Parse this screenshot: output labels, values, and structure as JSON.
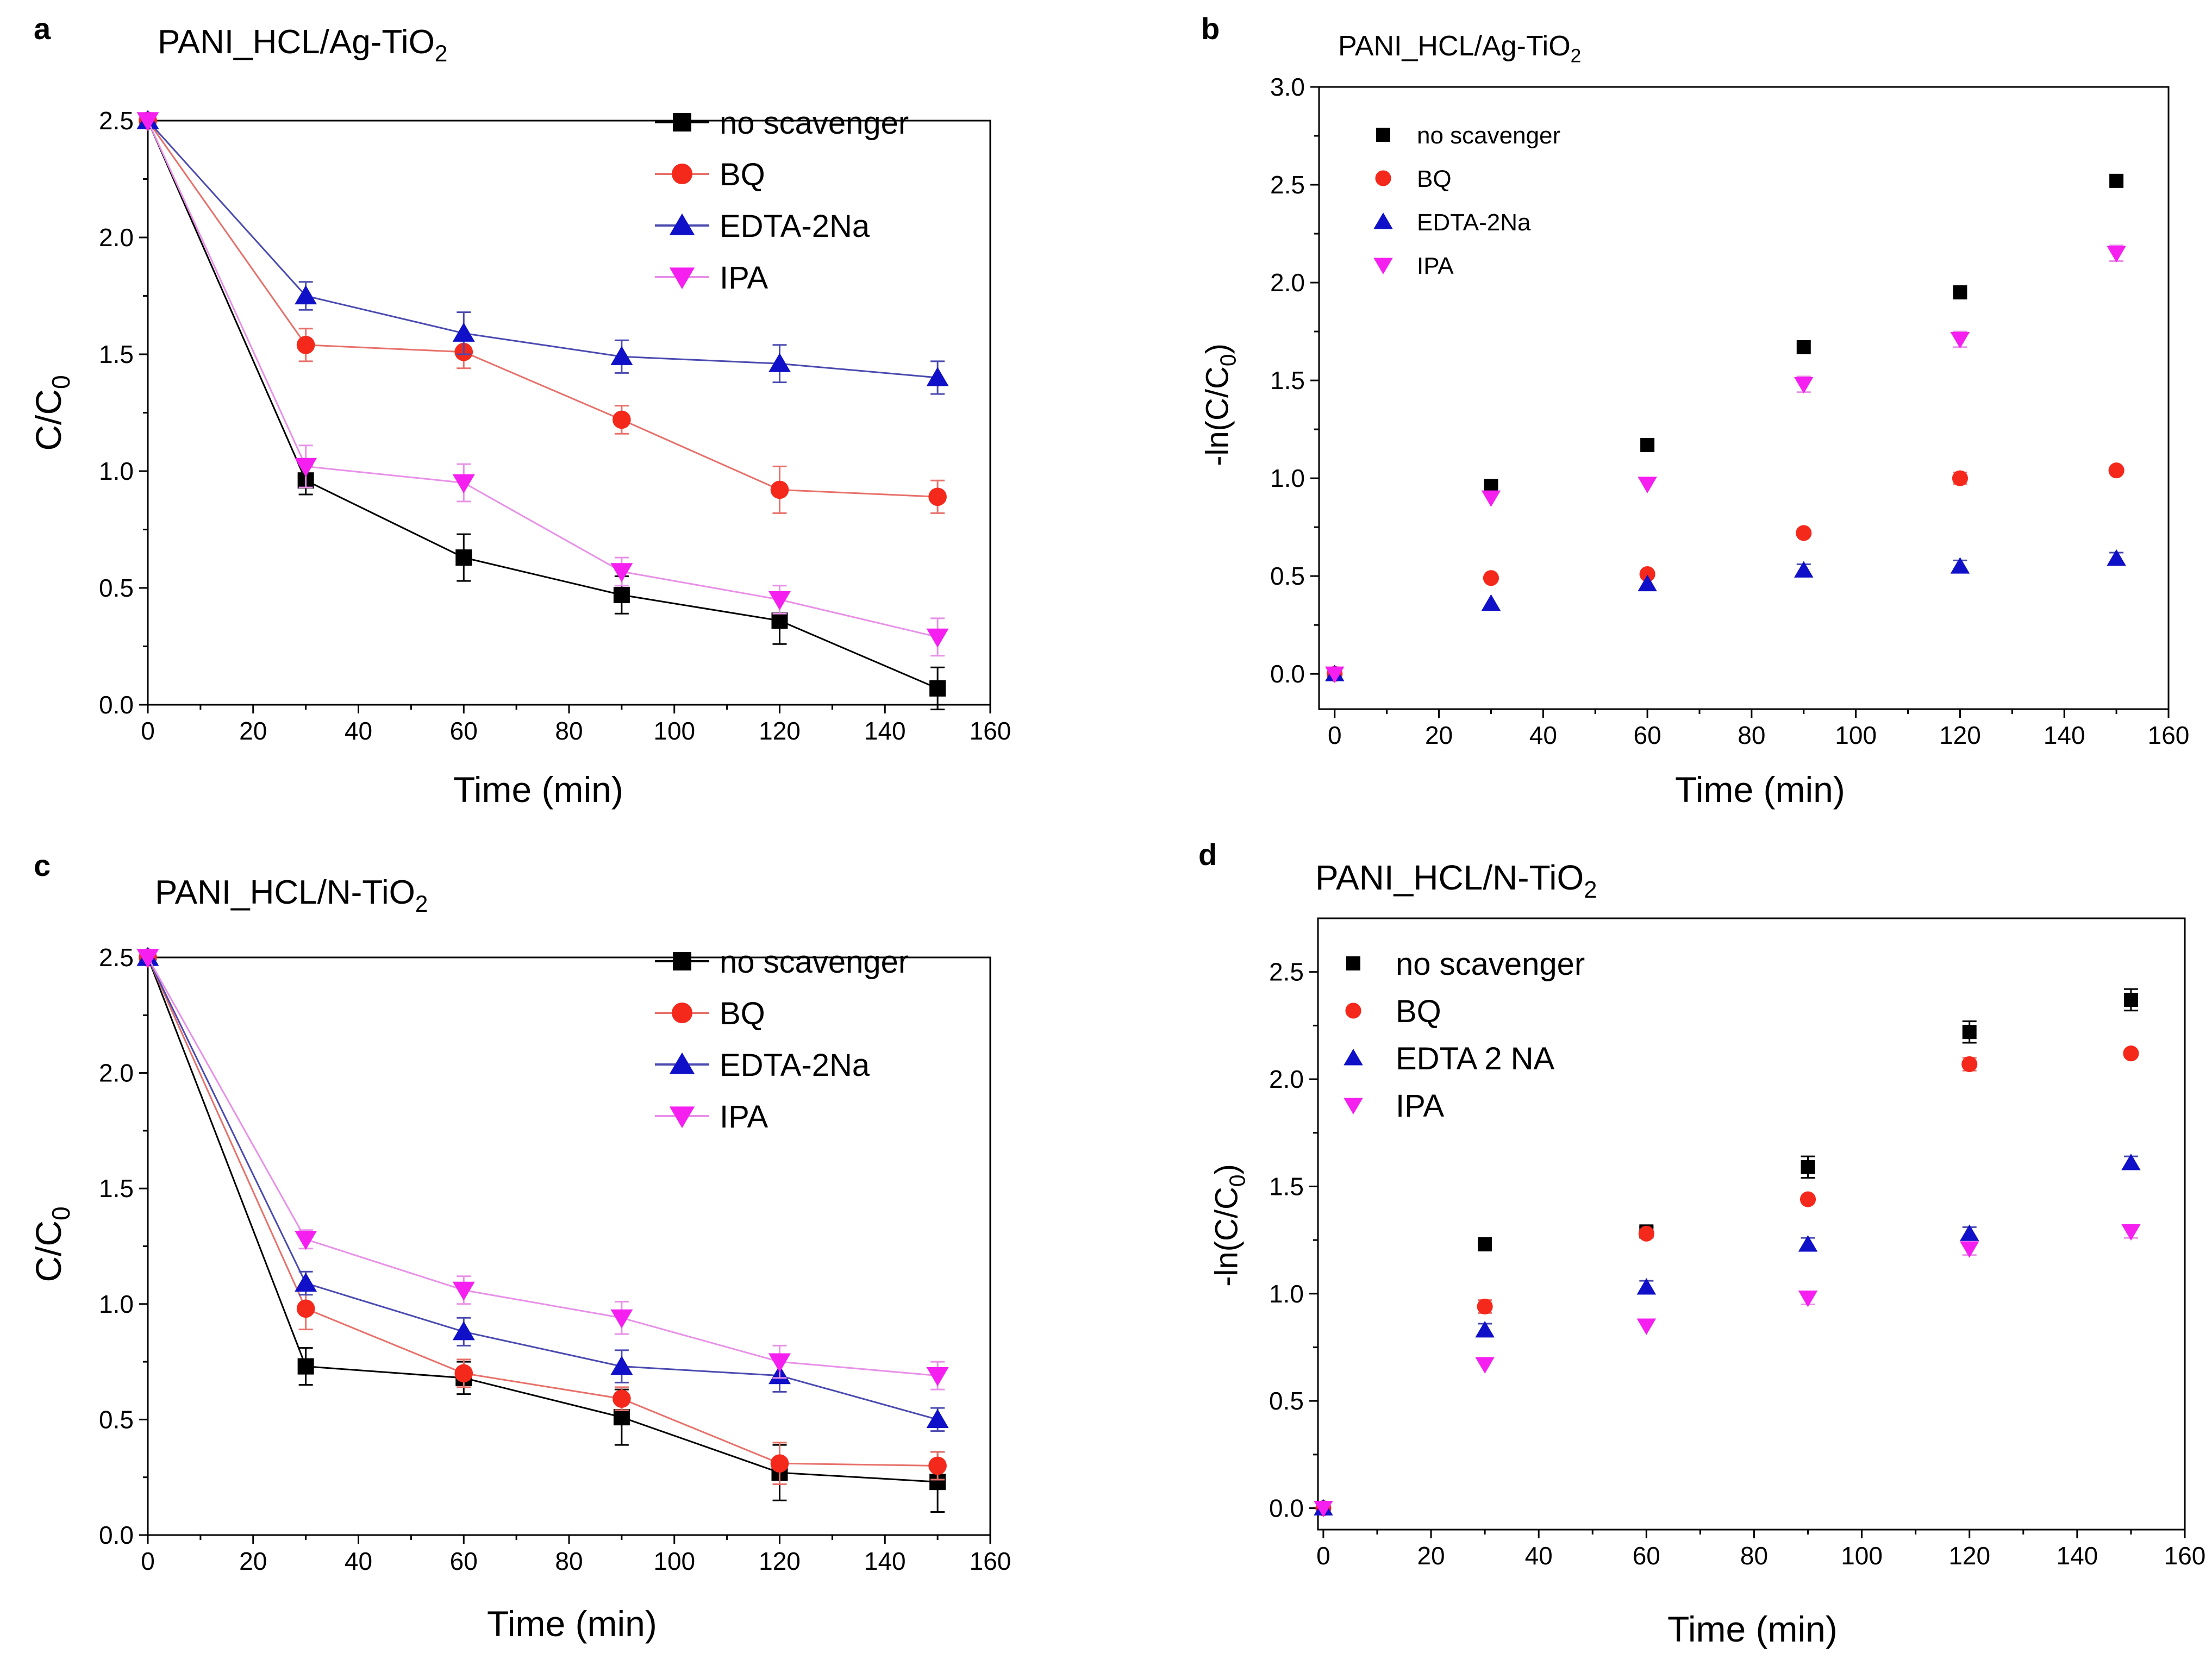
{
  "colors": {
    "no_scavenger": "#000000",
    "BQ": "#f5281c",
    "EDTA": "#1010c8",
    "IPA": "#f520f0",
    "line_BQ": "#e8706a",
    "line_EDTA": "#4a4ab0",
    "line_IPA": "#e890e8"
  },
  "chart_data": [
    {
      "panel_label": "a",
      "title_main": "PANI_HCL/Ag-TiO",
      "title_sub": "2",
      "type": "line",
      "xlabel": "Time (min)",
      "ylabel_main": "C/C",
      "ylabel_sub": "0",
      "xlim": [
        0,
        160
      ],
      "ylim": [
        0,
        2.5
      ],
      "xticks": [
        "0",
        "20",
        "40",
        "60",
        "80",
        "100",
        "120",
        "140",
        "160"
      ],
      "yticks": [
        "0.0",
        "0.5",
        "1.0",
        "1.5",
        "2.0",
        "2.5"
      ],
      "x": [
        0,
        30,
        60,
        90,
        120,
        150
      ],
      "legend_position": "top-right",
      "series": [
        {
          "name": "no scavenger",
          "values": [
            2.5,
            0.96,
            0.63,
            0.47,
            0.36,
            0.07
          ],
          "errors": [
            0,
            0.06,
            0.1,
            0.08,
            0.1,
            0.09
          ]
        },
        {
          "name": "BQ",
          "values": [
            2.5,
            1.54,
            1.51,
            1.22,
            0.92,
            0.89
          ],
          "errors": [
            0,
            0.07,
            0.07,
            0.06,
            0.1,
            0.07
          ]
        },
        {
          "name": "EDTA-2Na",
          "values": [
            2.5,
            1.75,
            1.59,
            1.49,
            1.46,
            1.4
          ],
          "errors": [
            0,
            0.06,
            0.09,
            0.07,
            0.08,
            0.07
          ]
        },
        {
          "name": "IPA",
          "values": [
            2.5,
            1.02,
            0.95,
            0.57,
            0.45,
            0.29
          ],
          "errors": [
            0,
            0.09,
            0.08,
            0.06,
            0.06,
            0.08
          ]
        }
      ]
    },
    {
      "panel_label": "b",
      "title_main": "PANI_HCL/Ag-TiO",
      "title_sub": "2",
      "type": "scatter",
      "xlabel": "Time (min)",
      "ylabel_main": "-ln(C/C",
      "ylabel_sub": "0",
      "ylabel_end": ")",
      "xlim": [
        -3,
        160
      ],
      "ylim": [
        -0.18,
        3.0
      ],
      "xticks": [
        "0",
        "20",
        "40",
        "60",
        "80",
        "100",
        "120",
        "140",
        "160"
      ],
      "yticks": [
        "0.0",
        "0.5",
        "1.0",
        "1.5",
        "2.0",
        "2.5",
        "3.0"
      ],
      "x": [
        0,
        30,
        60,
        90,
        120,
        150
      ],
      "legend_position": "top-left",
      "series": [
        {
          "name": "no scavenger",
          "values": [
            0,
            0.96,
            1.17,
            1.67,
            1.95,
            2.52
          ],
          "errors": [
            0,
            0,
            0,
            0,
            0,
            0
          ]
        },
        {
          "name": "BQ",
          "values": [
            0,
            0.49,
            0.51,
            0.72,
            1.0,
            1.04
          ],
          "errors": [
            0,
            0,
            0,
            0,
            0.03,
            0
          ]
        },
        {
          "name": "EDTA-2Na",
          "values": [
            0,
            0.36,
            0.46,
            0.53,
            0.55,
            0.59
          ],
          "errors": [
            0,
            0,
            0,
            0.03,
            0.03,
            0.03
          ]
        },
        {
          "name": "IPA",
          "values": [
            0,
            0.9,
            0.97,
            1.48,
            1.71,
            2.15
          ],
          "errors": [
            0,
            0,
            0,
            0.04,
            0.04,
            0.04
          ]
        }
      ]
    },
    {
      "panel_label": "c",
      "title_main": "PANI_HCL/N-TiO",
      "title_sub": "2",
      "type": "line",
      "xlabel": "Time (min)",
      "ylabel_main": "C/C",
      "ylabel_sub": "0",
      "xlim": [
        0,
        160
      ],
      "ylim": [
        0,
        2.5
      ],
      "xticks": [
        "0",
        "20",
        "40",
        "60",
        "80",
        "100",
        "120",
        "140",
        "160"
      ],
      "yticks": [
        "0.0",
        "0.5",
        "1.0",
        "1.5",
        "2.0",
        "2.5"
      ],
      "x": [
        0,
        30,
        60,
        90,
        120,
        150
      ],
      "legend_position": "top-right",
      "series": [
        {
          "name": "no scavenger",
          "values": [
            2.5,
            0.73,
            0.68,
            0.51,
            0.27,
            0.23
          ],
          "errors": [
            0,
            0.08,
            0.07,
            0.12,
            0.12,
            0.13
          ]
        },
        {
          "name": "BQ",
          "values": [
            2.5,
            0.98,
            0.7,
            0.59,
            0.31,
            0.3
          ],
          "errors": [
            0,
            0.09,
            0.06,
            0.05,
            0.09,
            0.06
          ]
        },
        {
          "name": "EDTA-2Na",
          "values": [
            2.5,
            1.09,
            0.88,
            0.73,
            0.69,
            0.5
          ],
          "errors": [
            0,
            0.05,
            0.06,
            0.07,
            0.07,
            0.05
          ]
        },
        {
          "name": "IPA",
          "values": [
            2.5,
            1.28,
            1.06,
            0.94,
            0.75,
            0.69
          ],
          "errors": [
            0,
            0.04,
            0.06,
            0.07,
            0.07,
            0.06
          ]
        }
      ]
    },
    {
      "panel_label": "d",
      "title_main": "PANI_HCL/N-TiO",
      "title_sub": "2",
      "type": "scatter",
      "xlabel": "Time (min)",
      "ylabel_main": "-ln(C/C",
      "ylabel_sub": "0",
      "ylabel_end": ")",
      "xlim": [
        -1,
        160
      ],
      "ylim": [
        -0.1,
        2.75
      ],
      "xticks": [
        "0",
        "20",
        "40",
        "60",
        "80",
        "100",
        "120",
        "140",
        "160"
      ],
      "yticks": [
        "0.0",
        "0.5",
        "1.0",
        "1.5",
        "2.0",
        "2.5"
      ],
      "x": [
        0,
        30,
        60,
        90,
        120,
        150
      ],
      "legend_position": "top-left",
      "series": [
        {
          "name": "no scavenger",
          "values": [
            0,
            1.23,
            1.29,
            1.59,
            2.22,
            2.37
          ],
          "errors": [
            0,
            0,
            0.02,
            0.05,
            0.05,
            0.05
          ]
        },
        {
          "name": "BQ",
          "values": [
            0,
            0.94,
            1.28,
            1.44,
            2.07,
            2.12
          ],
          "errors": [
            0,
            0.03,
            0,
            0,
            0.03,
            0
          ]
        },
        {
          "name": "EDTA 2 NA",
          "values": [
            0,
            0.83,
            1.03,
            1.23,
            1.28,
            1.61
          ],
          "errors": [
            0,
            0.03,
            0.03,
            0.03,
            0.03,
            0.03
          ]
        },
        {
          "name": "IPA",
          "values": [
            0,
            0.67,
            0.85,
            0.98,
            1.21,
            1.29
          ],
          "errors": [
            0,
            0,
            0,
            0.03,
            0.03,
            0.03
          ]
        }
      ]
    }
  ]
}
